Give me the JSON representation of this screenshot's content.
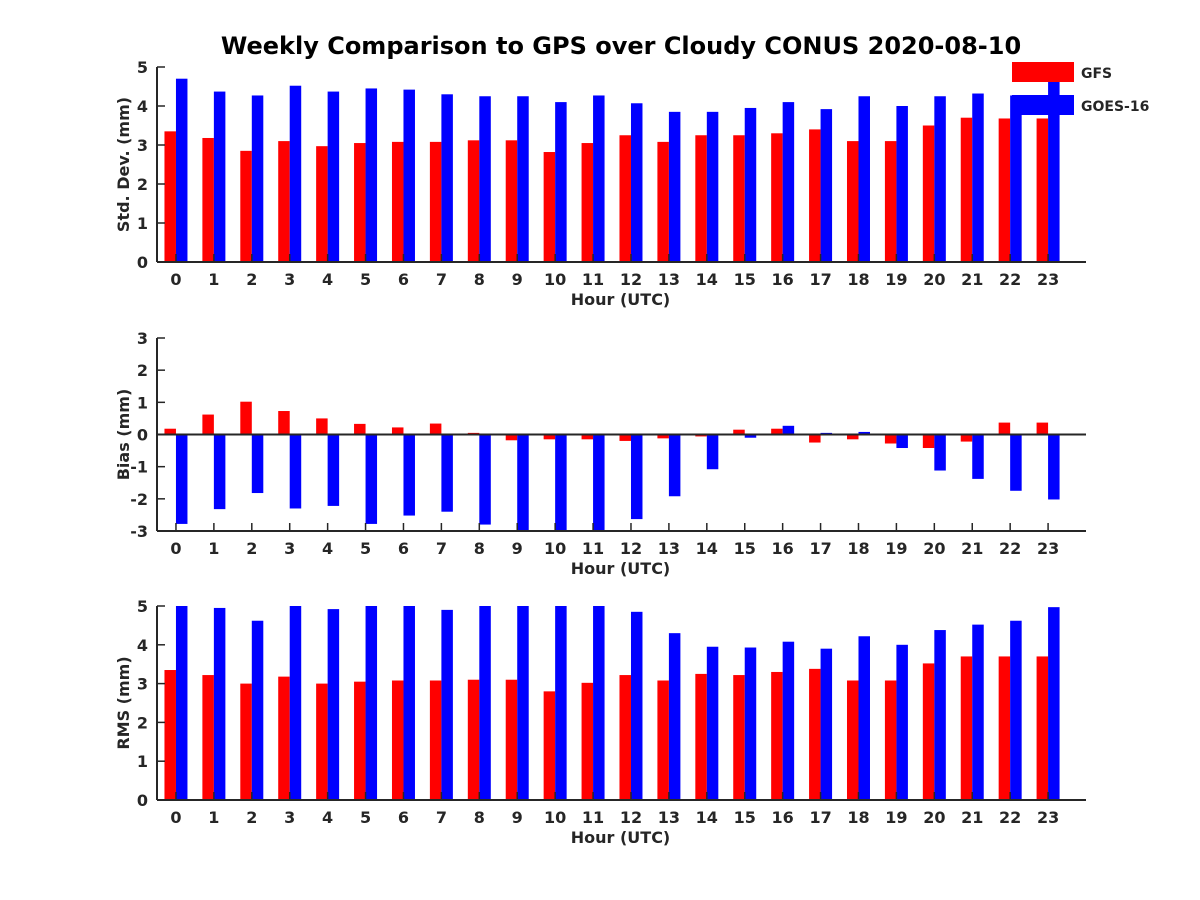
{
  "title": "Weekly Comparison to GPS over Cloudy CONUS 2020-08-10",
  "colors": {
    "gfs": "#ff0000",
    "goes": "#0000ff",
    "axis": "#262626"
  },
  "legend": {
    "placement": "top-right",
    "entries": [
      "GFS",
      "GOES-16"
    ]
  },
  "chart_data": [
    {
      "type": "bar",
      "title": "Weekly Comparison to GPS over Cloudy CONUS 2020-08-10",
      "xlabel": "Hour (UTC)",
      "ylabel": "Std. Dev. (mm)",
      "ylim": [
        0,
        5
      ],
      "yticks": [
        0,
        1,
        2,
        3,
        4,
        5
      ],
      "categories": [
        "0",
        "1",
        "2",
        "3",
        "4",
        "5",
        "6",
        "7",
        "8",
        "9",
        "10",
        "11",
        "12",
        "13",
        "14",
        "15",
        "16",
        "17",
        "18",
        "19",
        "20",
        "21",
        "22",
        "23"
      ],
      "series": [
        {
          "name": "GFS",
          "values": [
            3.35,
            3.18,
            2.85,
            3.1,
            2.97,
            3.05,
            3.08,
            3.08,
            3.12,
            3.12,
            2.82,
            3.05,
            3.25,
            3.08,
            3.25,
            3.25,
            3.3,
            3.4,
            3.1,
            3.1,
            3.5,
            3.7,
            3.68,
            3.68
          ]
        },
        {
          "name": "GOES-16",
          "values": [
            4.7,
            4.37,
            4.27,
            4.52,
            4.37,
            4.45,
            4.42,
            4.3,
            4.25,
            4.25,
            4.1,
            4.27,
            4.07,
            3.85,
            3.85,
            3.95,
            4.1,
            3.92,
            4.25,
            4.0,
            4.25,
            4.32,
            4.27,
            4.65
          ]
        }
      ],
      "grid": false,
      "legend": "top-right"
    },
    {
      "type": "bar",
      "xlabel": "Hour (UTC)",
      "ylabel": "Bias (mm)",
      "ylim": [
        -3,
        3
      ],
      "yticks": [
        -3,
        -2,
        -1,
        0,
        1,
        2,
        3
      ],
      "categories": [
        "0",
        "1",
        "2",
        "3",
        "4",
        "5",
        "6",
        "7",
        "8",
        "9",
        "10",
        "11",
        "12",
        "13",
        "14",
        "15",
        "16",
        "17",
        "18",
        "19",
        "20",
        "21",
        "22",
        "23"
      ],
      "series": [
        {
          "name": "GFS",
          "values": [
            0.18,
            0.62,
            1.02,
            0.73,
            0.5,
            0.33,
            0.22,
            0.34,
            0.05,
            -0.18,
            -0.15,
            -0.15,
            -0.2,
            -0.12,
            -0.06,
            0.15,
            0.18,
            -0.25,
            -0.15,
            -0.28,
            -0.42,
            -0.22,
            0.37,
            0.37
          ]
        },
        {
          "name": "GOES-16",
          "values": [
            -2.78,
            -2.32,
            -1.82,
            -2.3,
            -2.22,
            -2.78,
            -2.52,
            -2.4,
            -2.8,
            -3.0,
            -3.0,
            -3.0,
            -2.63,
            -1.92,
            -1.08,
            -0.1,
            0.27,
            0.05,
            0.08,
            -0.42,
            -1.12,
            -1.38,
            -1.75,
            -2.02
          ]
        }
      ],
      "grid": false
    },
    {
      "type": "bar",
      "xlabel": "Hour (UTC)",
      "ylabel": "RMS (mm)",
      "ylim": [
        0,
        5
      ],
      "yticks": [
        0,
        1,
        2,
        3,
        4,
        5
      ],
      "categories": [
        "0",
        "1",
        "2",
        "3",
        "4",
        "5",
        "6",
        "7",
        "8",
        "9",
        "10",
        "11",
        "12",
        "13",
        "14",
        "15",
        "16",
        "17",
        "18",
        "19",
        "20",
        "21",
        "22",
        "23"
      ],
      "series": [
        {
          "name": "GFS",
          "values": [
            3.35,
            3.22,
            3.0,
            3.18,
            3.0,
            3.05,
            3.08,
            3.08,
            3.1,
            3.1,
            2.8,
            3.02,
            3.22,
            3.08,
            3.25,
            3.22,
            3.3,
            3.38,
            3.08,
            3.08,
            3.52,
            3.7,
            3.7,
            3.7
          ]
        },
        {
          "name": "GOES-16",
          "values": [
            5.0,
            4.95,
            4.62,
            5.0,
            4.92,
            5.0,
            5.0,
            4.9,
            5.0,
            5.0,
            5.0,
            5.0,
            4.85,
            4.3,
            3.95,
            3.93,
            4.08,
            3.9,
            4.22,
            4.0,
            4.38,
            4.52,
            4.62,
            4.97
          ]
        }
      ],
      "grid": false
    }
  ]
}
